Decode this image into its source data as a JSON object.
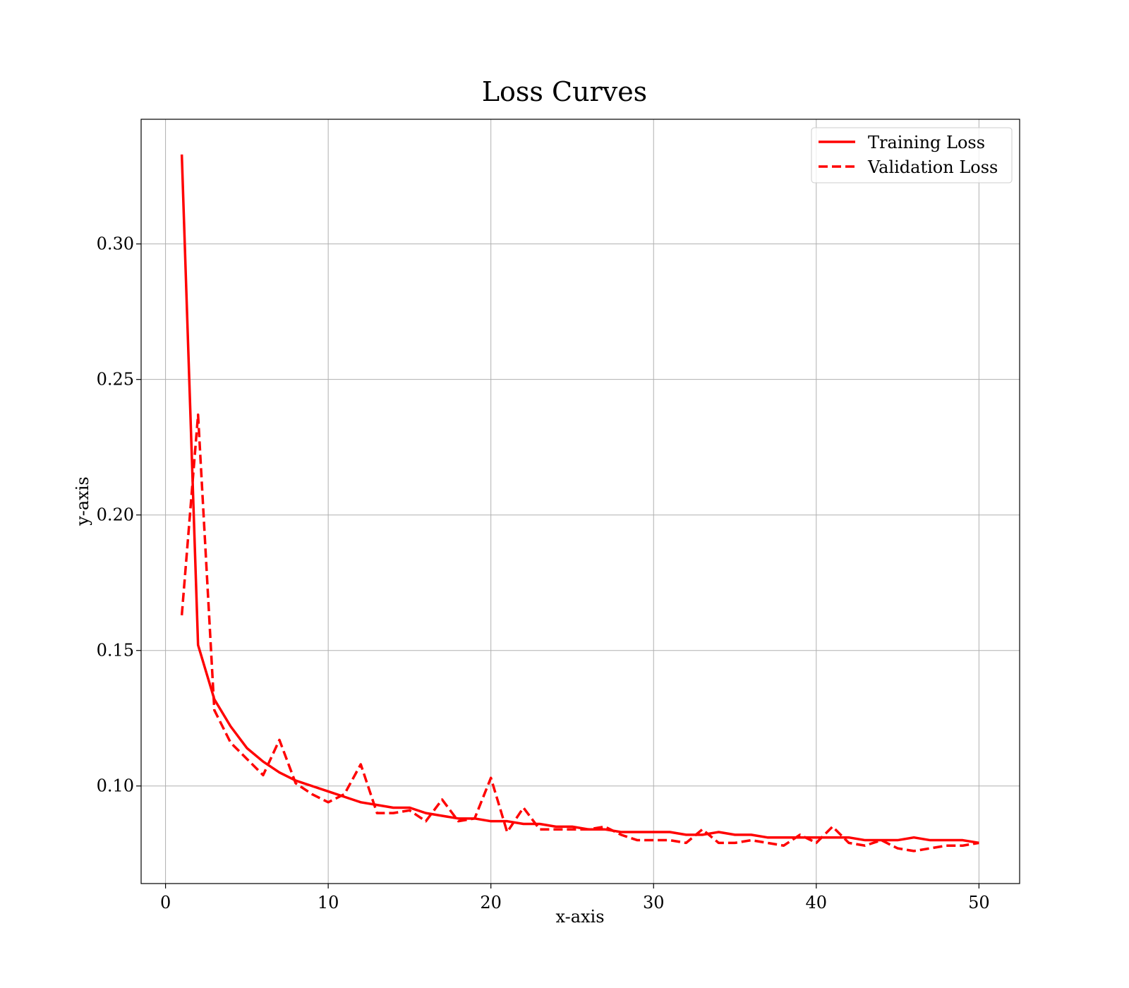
{
  "chart_data": {
    "type": "line",
    "title": "Loss Curves",
    "xlabel": "x-axis",
    "ylabel": "y-axis",
    "xlim": [
      -1.5,
      52.5
    ],
    "ylim": [
      0.064,
      0.346
    ],
    "xticks": [
      0,
      10,
      20,
      30,
      40,
      50
    ],
    "yticks": [
      0.1,
      0.15,
      0.2,
      0.25,
      0.3
    ],
    "xtick_labels": [
      "0",
      "10",
      "20",
      "30",
      "40",
      "50"
    ],
    "ytick_labels": [
      "0.10",
      "0.15",
      "0.20",
      "0.25",
      "0.30"
    ],
    "grid": true,
    "legend_position": "top-right",
    "x": [
      1,
      2,
      3,
      4,
      5,
      6,
      7,
      8,
      9,
      10,
      11,
      12,
      13,
      14,
      15,
      16,
      17,
      18,
      19,
      20,
      21,
      22,
      23,
      24,
      25,
      26,
      27,
      28,
      29,
      30,
      31,
      32,
      33,
      34,
      35,
      36,
      37,
      38,
      39,
      40,
      41,
      42,
      43,
      44,
      45,
      46,
      47,
      48,
      49,
      50
    ],
    "series": [
      {
        "name": "Training Loss",
        "color": "#ff0000",
        "style": "solid",
        "values": [
          0.333,
          0.152,
          0.132,
          0.122,
          0.114,
          0.109,
          0.105,
          0.102,
          0.1,
          0.098,
          0.096,
          0.094,
          0.093,
          0.092,
          0.092,
          0.09,
          0.089,
          0.088,
          0.088,
          0.087,
          0.087,
          0.086,
          0.086,
          0.085,
          0.085,
          0.084,
          0.084,
          0.083,
          0.083,
          0.083,
          0.083,
          0.082,
          0.082,
          0.083,
          0.082,
          0.082,
          0.081,
          0.081,
          0.081,
          0.081,
          0.081,
          0.081,
          0.08,
          0.08,
          0.08,
          0.081,
          0.08,
          0.08,
          0.08,
          0.079
        ]
      },
      {
        "name": "Validation Loss",
        "color": "#ff0000",
        "style": "dashed",
        "values": [
          0.163,
          0.237,
          0.128,
          0.116,
          0.11,
          0.104,
          0.117,
          0.101,
          0.097,
          0.094,
          0.097,
          0.108,
          0.09,
          0.09,
          0.091,
          0.087,
          0.095,
          0.087,
          0.088,
          0.103,
          0.083,
          0.092,
          0.084,
          0.084,
          0.084,
          0.084,
          0.085,
          0.082,
          0.08,
          0.08,
          0.08,
          0.079,
          0.084,
          0.079,
          0.079,
          0.08,
          0.079,
          0.078,
          0.082,
          0.079,
          0.085,
          0.079,
          0.078,
          0.08,
          0.077,
          0.076,
          0.077,
          0.078,
          0.078,
          0.079
        ]
      }
    ]
  }
}
